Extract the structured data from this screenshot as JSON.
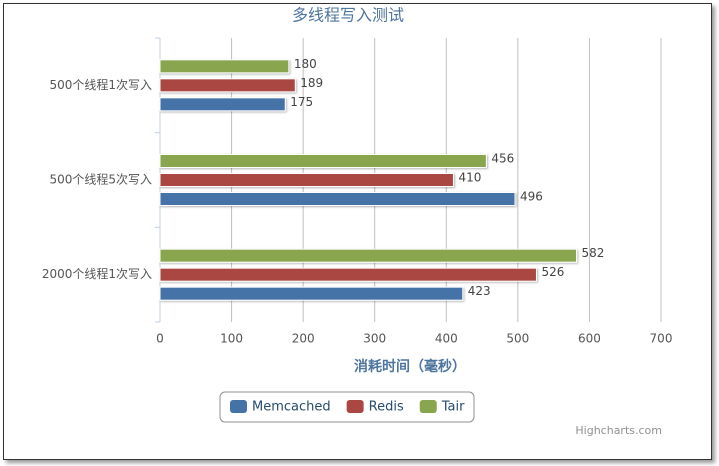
{
  "chart_data": {
    "type": "bar",
    "orientation": "horizontal",
    "title": "多线程写入测试",
    "categories": [
      "500个线程1次写入",
      "500个线程5次写入",
      "2000个线程1次写入"
    ],
    "series": [
      {
        "name": "Memcached",
        "color": "#4572a7",
        "values": [
          175,
          496,
          423
        ]
      },
      {
        "name": "Redis",
        "color": "#aa4643",
        "values": [
          189,
          410,
          526
        ]
      },
      {
        "name": "Tair",
        "color": "#89a54e",
        "values": [
          180,
          456,
          582
        ]
      }
    ],
    "xlim": [
      0,
      700
    ],
    "xticks": [
      0,
      100,
      200,
      300,
      400,
      500,
      600,
      700
    ],
    "xlabel": "消耗时间（毫秒）",
    "grid": true,
    "credit": "Highcharts.com"
  }
}
